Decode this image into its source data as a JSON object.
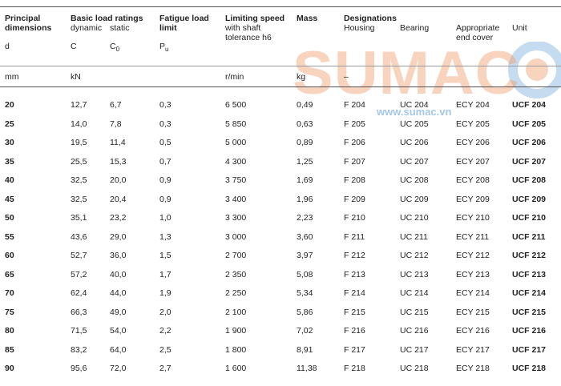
{
  "header": {
    "principal": {
      "title1": "Principal",
      "title2": "dimensions",
      "symbol": "d"
    },
    "load": {
      "title": "Basic load ratings",
      "sub_dynamic": "dynamic",
      "sub_static": "static",
      "sym_c": "C",
      "sym_c0_base": "C",
      "sym_c0_sub": "0"
    },
    "fatigue": {
      "title1": "Fatigue load",
      "title2": "limit",
      "sym_base": "P",
      "sym_sub": "u"
    },
    "limiting": {
      "title": "Limiting speed",
      "sub1": "with shaft",
      "sub2": "tolerance h6"
    },
    "mass": {
      "title": "Mass"
    },
    "designations": {
      "title": "Designations",
      "housing": "Housing",
      "bearing": "Bearing",
      "cover1": "Appropriate",
      "cover2": "end cover",
      "unit": "Unit"
    }
  },
  "units": {
    "d": "mm",
    "load": "kN",
    "speed": "r/min",
    "mass": "kg",
    "designations": "–"
  },
  "watermark": {
    "brand": "SUMAC",
    "url": "www.sumac.vn",
    "color_blue": "#5a9bd4",
    "color_orange": "#f0a070"
  },
  "rows": [
    {
      "d": "20",
      "c": "12,7",
      "c0": "6,7",
      "pu": "0,3",
      "speed": "6 500",
      "mass": "0,49",
      "housing": "F 204",
      "bearing": "UC 204",
      "cover": "ECY 204",
      "unit": "UCF 204"
    },
    {
      "d": "25",
      "c": "14,0",
      "c0": "7,8",
      "pu": "0,3",
      "speed": "5 850",
      "mass": "0,63",
      "housing": "F 205",
      "bearing": "UC 205",
      "cover": "ECY 205",
      "unit": "UCF 205"
    },
    {
      "d": "30",
      "c": "19,5",
      "c0": "11,4",
      "pu": "0,5",
      "speed": "5 000",
      "mass": "0,89",
      "housing": "F 206",
      "bearing": "UC 206",
      "cover": "ECY 206",
      "unit": "UCF 206"
    },
    {
      "d": "35",
      "c": "25,5",
      "c0": "15,3",
      "pu": "0,7",
      "speed": "4 300",
      "mass": "1,25",
      "housing": "F 207",
      "bearing": "UC 207",
      "cover": "ECY 207",
      "unit": "UCF 207"
    },
    {
      "d": "40",
      "c": "32,5",
      "c0": "20,0",
      "pu": "0,9",
      "speed": "3 750",
      "mass": "1,69",
      "housing": "F 208",
      "bearing": "UC 208",
      "cover": "ECY 208",
      "unit": "UCF 208"
    },
    {
      "d": "45",
      "c": "32,5",
      "c0": "20,4",
      "pu": "0,9",
      "speed": "3 400",
      "mass": "1,96",
      "housing": "F 209",
      "bearing": "UC 209",
      "cover": "ECY 209",
      "unit": "UCF 209"
    },
    {
      "d": "50",
      "c": "35,1",
      "c0": "23,2",
      "pu": "1,0",
      "speed": "3 300",
      "mass": "2,23",
      "housing": "F 210",
      "bearing": "UC 210",
      "cover": "ECY 210",
      "unit": "UCF 210"
    },
    {
      "d": "55",
      "c": "43,6",
      "c0": "29,0",
      "pu": "1,3",
      "speed": "3 000",
      "mass": "3,60",
      "housing": "F 211",
      "bearing": "UC 211",
      "cover": "ECY 211",
      "unit": "UCF 211"
    },
    {
      "d": "60",
      "c": "52,7",
      "c0": "36,0",
      "pu": "1,5",
      "speed": "2 700",
      "mass": "3,97",
      "housing": "F 212",
      "bearing": "UC 212",
      "cover": "ECY 212",
      "unit": "UCF 212"
    },
    {
      "d": "65",
      "c": "57,2",
      "c0": "40,0",
      "pu": "1,7",
      "speed": "2 350",
      "mass": "5,08",
      "housing": "F 213",
      "bearing": "UC 213",
      "cover": "ECY 213",
      "unit": "UCF 213"
    },
    {
      "d": "70",
      "c": "62,4",
      "c0": "44,0",
      "pu": "1,9",
      "speed": "2 250",
      "mass": "5,34",
      "housing": "F 214",
      "bearing": "UC 214",
      "cover": "ECY 214",
      "unit": "UCF 214"
    },
    {
      "d": "75",
      "c": "66,3",
      "c0": "49,0",
      "pu": "2,0",
      "speed": "2 100",
      "mass": "5,86",
      "housing": "F 215",
      "bearing": "UC 215",
      "cover": "ECY 215",
      "unit": "UCF 215"
    },
    {
      "d": "80",
      "c": "71,5",
      "c0": "54,0",
      "pu": "2,2",
      "speed": "1 900",
      "mass": "7,02",
      "housing": "F 216",
      "bearing": "UC 216",
      "cover": "ECY 216",
      "unit": "UCF 216"
    },
    {
      "d": "85",
      "c": "83,2",
      "c0": "64,0",
      "pu": "2,5",
      "speed": "1 800",
      "mass": "8,91",
      "housing": "F 217",
      "bearing": "UC 217",
      "cover": "ECY 217",
      "unit": "UCF 217"
    },
    {
      "d": "90",
      "c": "95,6",
      "c0": "72,0",
      "pu": "2,7",
      "speed": "1 600",
      "mass": "11,38",
      "housing": "F 218",
      "bearing": "UC 218",
      "cover": "ECY 218",
      "unit": "UCF 218"
    }
  ]
}
